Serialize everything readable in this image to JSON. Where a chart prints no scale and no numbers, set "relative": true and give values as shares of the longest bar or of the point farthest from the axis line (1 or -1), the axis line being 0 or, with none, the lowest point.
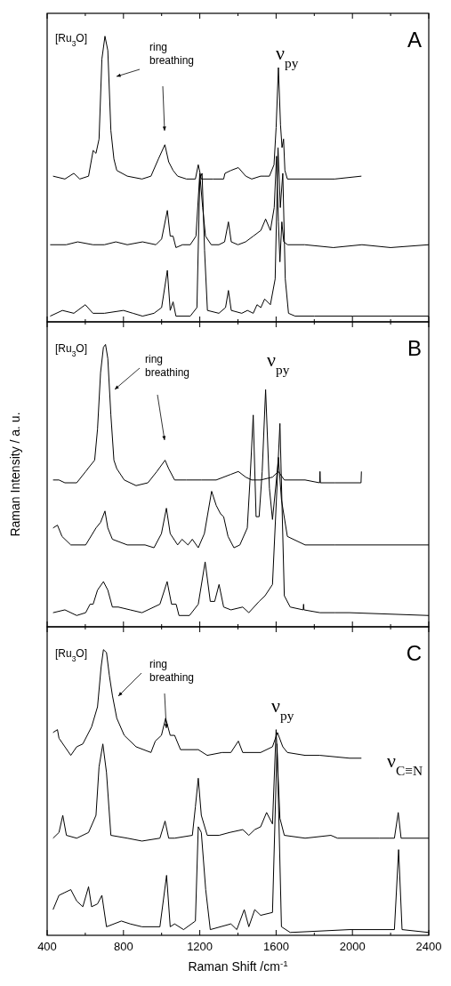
{
  "chart_data": [
    {
      "type": "line",
      "title": "A",
      "relative": true,
      "tick_labels": false,
      "xlim": [
        400,
        2400
      ],
      "xticks": [
        400,
        {
          "value": 600,
          "label": null
        },
        800,
        {
          "value": 1000,
          "label": null
        },
        1200,
        {
          "value": 1400,
          "label": null
        },
        1600,
        {
          "value": 1800,
          "label": null
        },
        2000,
        {
          "value": 2200,
          "label": null
        },
        2400
      ],
      "marker": "none",
      "line_style": "solid",
      "annotations": [
        "[Ru$_{3}$O]",
        "ring breathing",
        "ν$_{py}$"
      ],
      "series": [
        {
          "color": "#000000",
          "x": [
            431,
            493,
            540,
            571,
            617,
            641,
            656,
            672,
            687,
            703,
            718,
            734,
            750,
            765,
            820,
            897,
            944,
            983,
            1017,
            1037,
            1060,
            1084,
            1130,
            1177,
            1192,
            1208,
            1270,
            1325,
            1332,
            1363,
            1402,
            1441,
            1472,
            1519,
            1542,
            1565,
            1589,
            1600,
            1612,
            1623,
            1631,
            1639,
            1646,
            1659,
            1752,
            1907,
            2047
          ],
          "values": [
            0.51,
            0.5,
            0.52,
            0.5,
            0.51,
            0.6,
            0.59,
            0.64,
            0.92,
            1,
            0.95,
            0.67,
            0.57,
            0.53,
            0.51,
            0.5,
            0.51,
            0.57,
            0.62,
            0.56,
            0.53,
            0.51,
            0.5,
            0.5,
            0.55,
            0.5,
            0.5,
            0.5,
            0.52,
            0.53,
            0.54,
            0.51,
            0.5,
            0.51,
            0.51,
            0.51,
            0.55,
            0.68,
            0.89,
            0.69,
            0.61,
            0.64,
            0.53,
            0.5,
            0.5,
            0.5,
            0.51
          ]
        },
        {
          "color": "#000000",
          "x": [
            416,
            500,
            560,
            640,
            700,
            760,
            820,
            900,
            970,
            1000,
            1030,
            1045,
            1060,
            1075,
            1110,
            1150,
            1180,
            1200,
            1215,
            1230,
            1260,
            1300,
            1330,
            1350,
            1365,
            1400,
            1440,
            1480,
            1520,
            1545,
            1570,
            1590,
            1602,
            1612,
            1620,
            1630,
            1640,
            1660,
            1750,
            1900,
            2050,
            2200,
            2400
          ],
          "values": [
            0.27,
            0.27,
            0.28,
            0.27,
            0.27,
            0.28,
            0.27,
            0.28,
            0.27,
            0.29,
            0.39,
            0.3,
            0.3,
            0.26,
            0.27,
            0.27,
            0.3,
            0.52,
            0.4,
            0.3,
            0.27,
            0.27,
            0.28,
            0.35,
            0.28,
            0.27,
            0.28,
            0.3,
            0.32,
            0.36,
            0.32,
            0.4,
            0.58,
            0.35,
            0.21,
            0.35,
            0.28,
            0.27,
            0.27,
            0.26,
            0.27,
            0.26,
            0.27
          ]
        },
        {
          "color": "#000000",
          "x": [
            416,
            480,
            540,
            600,
            640,
            700,
            800,
            850,
            900,
            960,
            1000,
            1030,
            1045,
            1060,
            1075,
            1150,
            1185,
            1200,
            1212,
            1225,
            1240,
            1300,
            1335,
            1350,
            1365,
            1420,
            1450,
            1480,
            1500,
            1520,
            1540,
            1570,
            1595,
            1610,
            1622,
            1635,
            1648,
            1665,
            1700,
            1800,
            2000,
            2200,
            2400
          ],
          "values": [
            0.02,
            0.04,
            0.03,
            0.06,
            0.03,
            0.03,
            0.04,
            0.03,
            0.02,
            0.03,
            0.05,
            0.18,
            0.04,
            0.07,
            0.02,
            0.02,
            0.05,
            0.5,
            0.52,
            0.25,
            0.04,
            0.03,
            0.05,
            0.11,
            0.04,
            0.03,
            0.04,
            0.03,
            0.06,
            0.05,
            0.08,
            0.06,
            0.15,
            0.61,
            0.4,
            0.52,
            0.15,
            0.03,
            0.02,
            0.02,
            0.02,
            0.02,
            0.02
          ]
        }
      ]
    },
    {
      "type": "line",
      "title": "B",
      "ylabel": "Raman Intensity / a. u.",
      "relative": true,
      "tick_labels": false,
      "xlim": [
        400,
        2400
      ],
      "xticks": [
        400,
        {
          "value": 600,
          "label": null
        },
        800,
        {
          "value": 1000,
          "label": null
        },
        1200,
        {
          "value": 1400,
          "label": null
        },
        1600,
        {
          "value": 1800,
          "label": null
        },
        2000,
        {
          "value": 2200,
          "label": null
        },
        2400
      ],
      "marker": "none",
      "line_style": "solid",
      "annotations": [
        "[Ru$_{3}$O]",
        "ring breathing",
        "ν$_{py}$"
      ],
      "series": [
        {
          "color": "#000000",
          "x": [
            431,
            462,
            493,
            555,
            602,
            625,
            649,
            664,
            680,
            695,
            706,
            718,
            734,
            750,
            765,
            804,
            866,
            928,
            975,
            1018,
            1037,
            1068,
            1130,
            1208,
            1286,
            1363,
            1402,
            1441,
            1472,
            1519,
            1581,
            1612,
            1643,
            1752,
            1828,
            1830,
            1832,
            1907,
            2045,
            2047
          ],
          "values": [
            0.52,
            0.52,
            0.51,
            0.51,
            0.55,
            0.57,
            0.59,
            0.7,
            0.9,
            0.99,
            1,
            0.95,
            0.75,
            0.59,
            0.56,
            0.52,
            0.5,
            0.51,
            0.55,
            0.59,
            0.56,
            0.52,
            0.52,
            0.52,
            0.52,
            0.54,
            0.55,
            0.53,
            0.52,
            0.52,
            0.53,
            0.55,
            0.52,
            0.52,
            0.51,
            0.55,
            0.51,
            0.51,
            0.51,
            0.55
          ]
        },
        {
          "color": "#000000",
          "x": [
            431,
            454,
            478,
            524,
            602,
            656,
            680,
            703,
            718,
            742,
            820,
            913,
            960,
            999,
            1025,
            1045,
            1084,
            1107,
            1138,
            1161,
            1192,
            1224,
            1262,
            1286,
            1309,
            1325,
            1348,
            1379,
            1410,
            1449,
            1464,
            1480,
            1495,
            1511,
            1527,
            1545,
            1565,
            1581,
            1600,
            1612,
            1628,
            1659,
            1752,
            1907,
            2400
          ],
          "values": [
            0.35,
            0.36,
            0.32,
            0.29,
            0.29,
            0.35,
            0.37,
            0.41,
            0.35,
            0.31,
            0.29,
            0.29,
            0.28,
            0.33,
            0.42,
            0.33,
            0.29,
            0.31,
            0.29,
            0.31,
            0.28,
            0.33,
            0.48,
            0.43,
            0.4,
            0.39,
            0.32,
            0.28,
            0.29,
            0.35,
            0.53,
            0.75,
            0.39,
            0.39,
            0.55,
            0.84,
            0.49,
            0.38,
            0.51,
            0.6,
            0.45,
            0.32,
            0.29,
            0.29,
            0.29
          ]
        },
        {
          "color": "#000000",
          "x": [
            431,
            493,
            555,
            602,
            625,
            641,
            664,
            695,
            718,
            742,
            773,
            835,
            897,
            991,
            1029,
            1052,
            1076,
            1091,
            1146,
            1192,
            1228,
            1255,
            1278,
            1301,
            1325,
            1363,
            1425,
            1457,
            1511,
            1542,
            1581,
            1620,
            1643,
            1674,
            1742,
            1744,
            1746,
            1830,
            1907,
            1985,
            2400
          ],
          "values": [
            0.05,
            0.06,
            0.04,
            0.05,
            0.08,
            0.08,
            0.13,
            0.16,
            0.13,
            0.07,
            0.07,
            0.06,
            0.05,
            0.08,
            0.16,
            0.08,
            0.08,
            0.04,
            0.04,
            0.08,
            0.23,
            0.09,
            0.09,
            0.15,
            0.07,
            0.06,
            0.07,
            0.05,
            0.09,
            0.11,
            0.15,
            0.72,
            0.11,
            0.07,
            0.06,
            0.08,
            0.06,
            0.05,
            0.05,
            0.05,
            0.04
          ]
        }
      ]
    },
    {
      "type": "line",
      "title": "C",
      "xlabel": "Raman Shift /cm$^{-1}$",
      "relative": true,
      "tick_labels": "x",
      "xlim": [
        400,
        2400
      ],
      "xticks": [
        400,
        {
          "value": 600,
          "label": null
        },
        800,
        {
          "value": 1000,
          "label": null
        },
        1200,
        {
          "value": 1400,
          "label": null
        },
        1600,
        {
          "value": 1800,
          "label": null
        },
        2000,
        {
          "value": 2200,
          "label": null
        },
        2400
      ],
      "marker": "none",
      "line_style": "solid",
      "annotations": [
        "[Ru$_{3}$O]",
        "ring breathing",
        "ν$_{py}$",
        "ν$_{C≡N}$"
      ],
      "series": [
        {
          "color": "#000000",
          "x": [
            431,
            454,
            462,
            493,
            524,
            555,
            587,
            633,
            664,
            683,
            695,
            711,
            726,
            742,
            765,
            804,
            866,
            944,
            967,
            999,
            1021,
            1045,
            1068,
            1099,
            1192,
            1239,
            1317,
            1363,
            1402,
            1425,
            1519,
            1581,
            1607,
            1635,
            1659,
            1752,
            1830,
            1985,
            2047
          ],
          "values": [
            0.71,
            0.72,
            0.69,
            0.66,
            0.63,
            0.66,
            0.67,
            0.73,
            0.8,
            0.94,
            1,
            0.99,
            0.91,
            0.84,
            0.76,
            0.7,
            0.66,
            0.64,
            0.68,
            0.7,
            0.76,
            0.7,
            0.7,
            0.65,
            0.65,
            0.63,
            0.64,
            0.64,
            0.68,
            0.64,
            0.64,
            0.66,
            0.71,
            0.66,
            0.64,
            0.63,
            0.63,
            0.62,
            0.62
          ]
        },
        {
          "color": "#000000",
          "x": [
            431,
            462,
            482,
            501,
            555,
            617,
            656,
            672,
            692,
            711,
            734,
            820,
            897,
            991,
            1018,
            1037,
            1068,
            1161,
            1177,
            1192,
            1208,
            1239,
            1301,
            1356,
            1425,
            1457,
            1488,
            1519,
            1550,
            1581,
            1600,
            1620,
            1643,
            1752,
            1887,
            1922,
            2140,
            2220,
            2240,
            2255,
            2400
          ],
          "values": [
            0.34,
            0.36,
            0.42,
            0.35,
            0.34,
            0.36,
            0.42,
            0.59,
            0.67,
            0.57,
            0.35,
            0.34,
            0.33,
            0.34,
            0.4,
            0.34,
            0.34,
            0.35,
            0.45,
            0.55,
            0.42,
            0.35,
            0.35,
            0.36,
            0.37,
            0.35,
            0.37,
            0.38,
            0.43,
            0.39,
            0.72,
            0.41,
            0.35,
            0.34,
            0.35,
            0.34,
            0.34,
            0.34,
            0.43,
            0.34,
            0.34
          ]
        },
        {
          "color": "#000000",
          "x": [
            431,
            462,
            493,
            524,
            555,
            587,
            617,
            633,
            664,
            687,
            711,
            789,
            835,
            897,
            991,
            1026,
            1045,
            1068,
            1115,
            1177,
            1192,
            1208,
            1231,
            1255,
            1363,
            1394,
            1433,
            1457,
            1488,
            1519,
            1581,
            1605,
            1628,
            1674,
            1985,
            2220,
            2242,
            2260,
            2400
          ],
          "values": [
            0.09,
            0.14,
            0.15,
            0.16,
            0.12,
            0.1,
            0.17,
            0.1,
            0.11,
            0.14,
            0.03,
            0.05,
            0.04,
            0.03,
            0.03,
            0.21,
            0.03,
            0.04,
            0.02,
            0.05,
            0.38,
            0.36,
            0.16,
            0.02,
            0.04,
            0.02,
            0.09,
            0.03,
            0.09,
            0.07,
            0.08,
            0.67,
            0.03,
            0.01,
            0.02,
            0.02,
            0.3,
            0.02,
            0.01
          ]
        }
      ]
    }
  ]
}
